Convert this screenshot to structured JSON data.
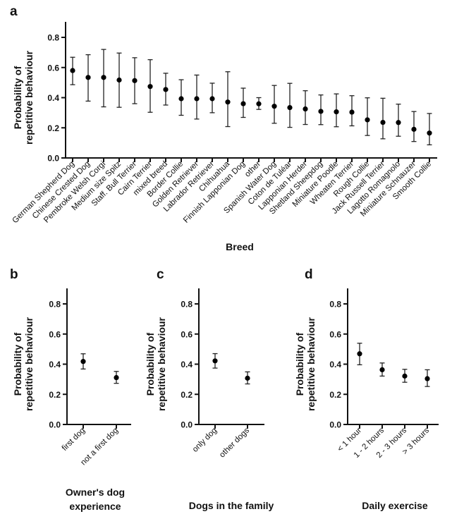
{
  "chart_data": [
    {
      "panel": "a",
      "type": "scatter",
      "xlabel": "Breed",
      "ylabel": [
        "Probability of",
        "repetitive behaviour"
      ],
      "ylim": [
        0,
        0.8
      ],
      "yticks": [
        "0.0",
        "0.2",
        "0.4",
        "0.6",
        "0.8"
      ],
      "categories": [
        "German Shepherd Dog",
        "Chinese Crested Dog",
        "Pembroke Welsh Corgi",
        "Medium size Spitz",
        "Staff. Bull Terrier",
        "Cairn Terrier",
        "mixed breed",
        "Border Collie",
        "Golden Retriever",
        "Labrador Retriever",
        "Chihuahua",
        "Finnish Lapponian Dog",
        "other",
        "Spanish Water Dog",
        "Coton de Tuléar",
        "Lapponian Herder",
        "Shetland Sheepdog",
        "Miniature Poodle",
        "Wheaten Terrier",
        "Rough Collie",
        "Jack Russell Terrier",
        "Lagotto Romagnolo",
        "Miniature Schnauzer",
        "Smooth Collie"
      ],
      "values": [
        0.58,
        0.534,
        0.534,
        0.517,
        0.513,
        0.474,
        0.454,
        0.393,
        0.393,
        0.393,
        0.371,
        0.36,
        0.359,
        0.343,
        0.334,
        0.325,
        0.309,
        0.306,
        0.304,
        0.253,
        0.236,
        0.235,
        0.19,
        0.165
      ],
      "lower": [
        0.486,
        0.377,
        0.339,
        0.336,
        0.36,
        0.303,
        0.351,
        0.283,
        0.258,
        0.3,
        0.208,
        0.269,
        0.322,
        0.23,
        0.203,
        0.222,
        0.221,
        0.207,
        0.213,
        0.149,
        0.127,
        0.144,
        0.109,
        0.087
      ],
      "upper": [
        0.668,
        0.685,
        0.72,
        0.696,
        0.665,
        0.652,
        0.562,
        0.519,
        0.55,
        0.496,
        0.572,
        0.463,
        0.4,
        0.481,
        0.495,
        0.446,
        0.418,
        0.425,
        0.413,
        0.399,
        0.396,
        0.357,
        0.308,
        0.295
      ]
    },
    {
      "panel": "b",
      "type": "scatter",
      "xlabel": [
        "Owner's dog",
        "experience"
      ],
      "ylabel": [
        "Probability of",
        "repetitive behaviour"
      ],
      "ylim": [
        0,
        0.8
      ],
      "yticks": [
        "0.0",
        "0.2",
        "0.4",
        "0.6",
        "0.8"
      ],
      "categories": [
        "first dog",
        "not a first dog"
      ],
      "values": [
        0.418,
        0.311
      ],
      "lower": [
        0.368,
        0.273
      ],
      "upper": [
        0.469,
        0.352
      ]
    },
    {
      "panel": "c",
      "type": "scatter",
      "xlabel": [
        "Dogs in the family"
      ],
      "ylabel": [
        "Probability of",
        "repetitive behaviour"
      ],
      "ylim": [
        0,
        0.8
      ],
      "yticks": [
        "0.0",
        "0.2",
        "0.4",
        "0.6",
        "0.8"
      ],
      "categories": [
        "only dog",
        "other dogs"
      ],
      "values": [
        0.422,
        0.307
      ],
      "lower": [
        0.374,
        0.269
      ],
      "upper": [
        0.47,
        0.349
      ]
    },
    {
      "panel": "d",
      "type": "scatter",
      "xlabel": [
        "Daily exercise"
      ],
      "ylabel": [
        "Probability of",
        "repetitive behaviour"
      ],
      "ylim": [
        0,
        0.8
      ],
      "yticks": [
        "0.0",
        "0.2",
        "0.4",
        "0.6",
        "0.8"
      ],
      "categories": [
        "< 1 hour",
        "1 - 2 hours",
        "2 - 3 hours",
        "> 3 hours"
      ],
      "values": [
        0.469,
        0.363,
        0.321,
        0.304
      ],
      "lower": [
        0.396,
        0.321,
        0.28,
        0.252
      ],
      "upper": [
        0.539,
        0.408,
        0.366,
        0.363
      ]
    }
  ]
}
